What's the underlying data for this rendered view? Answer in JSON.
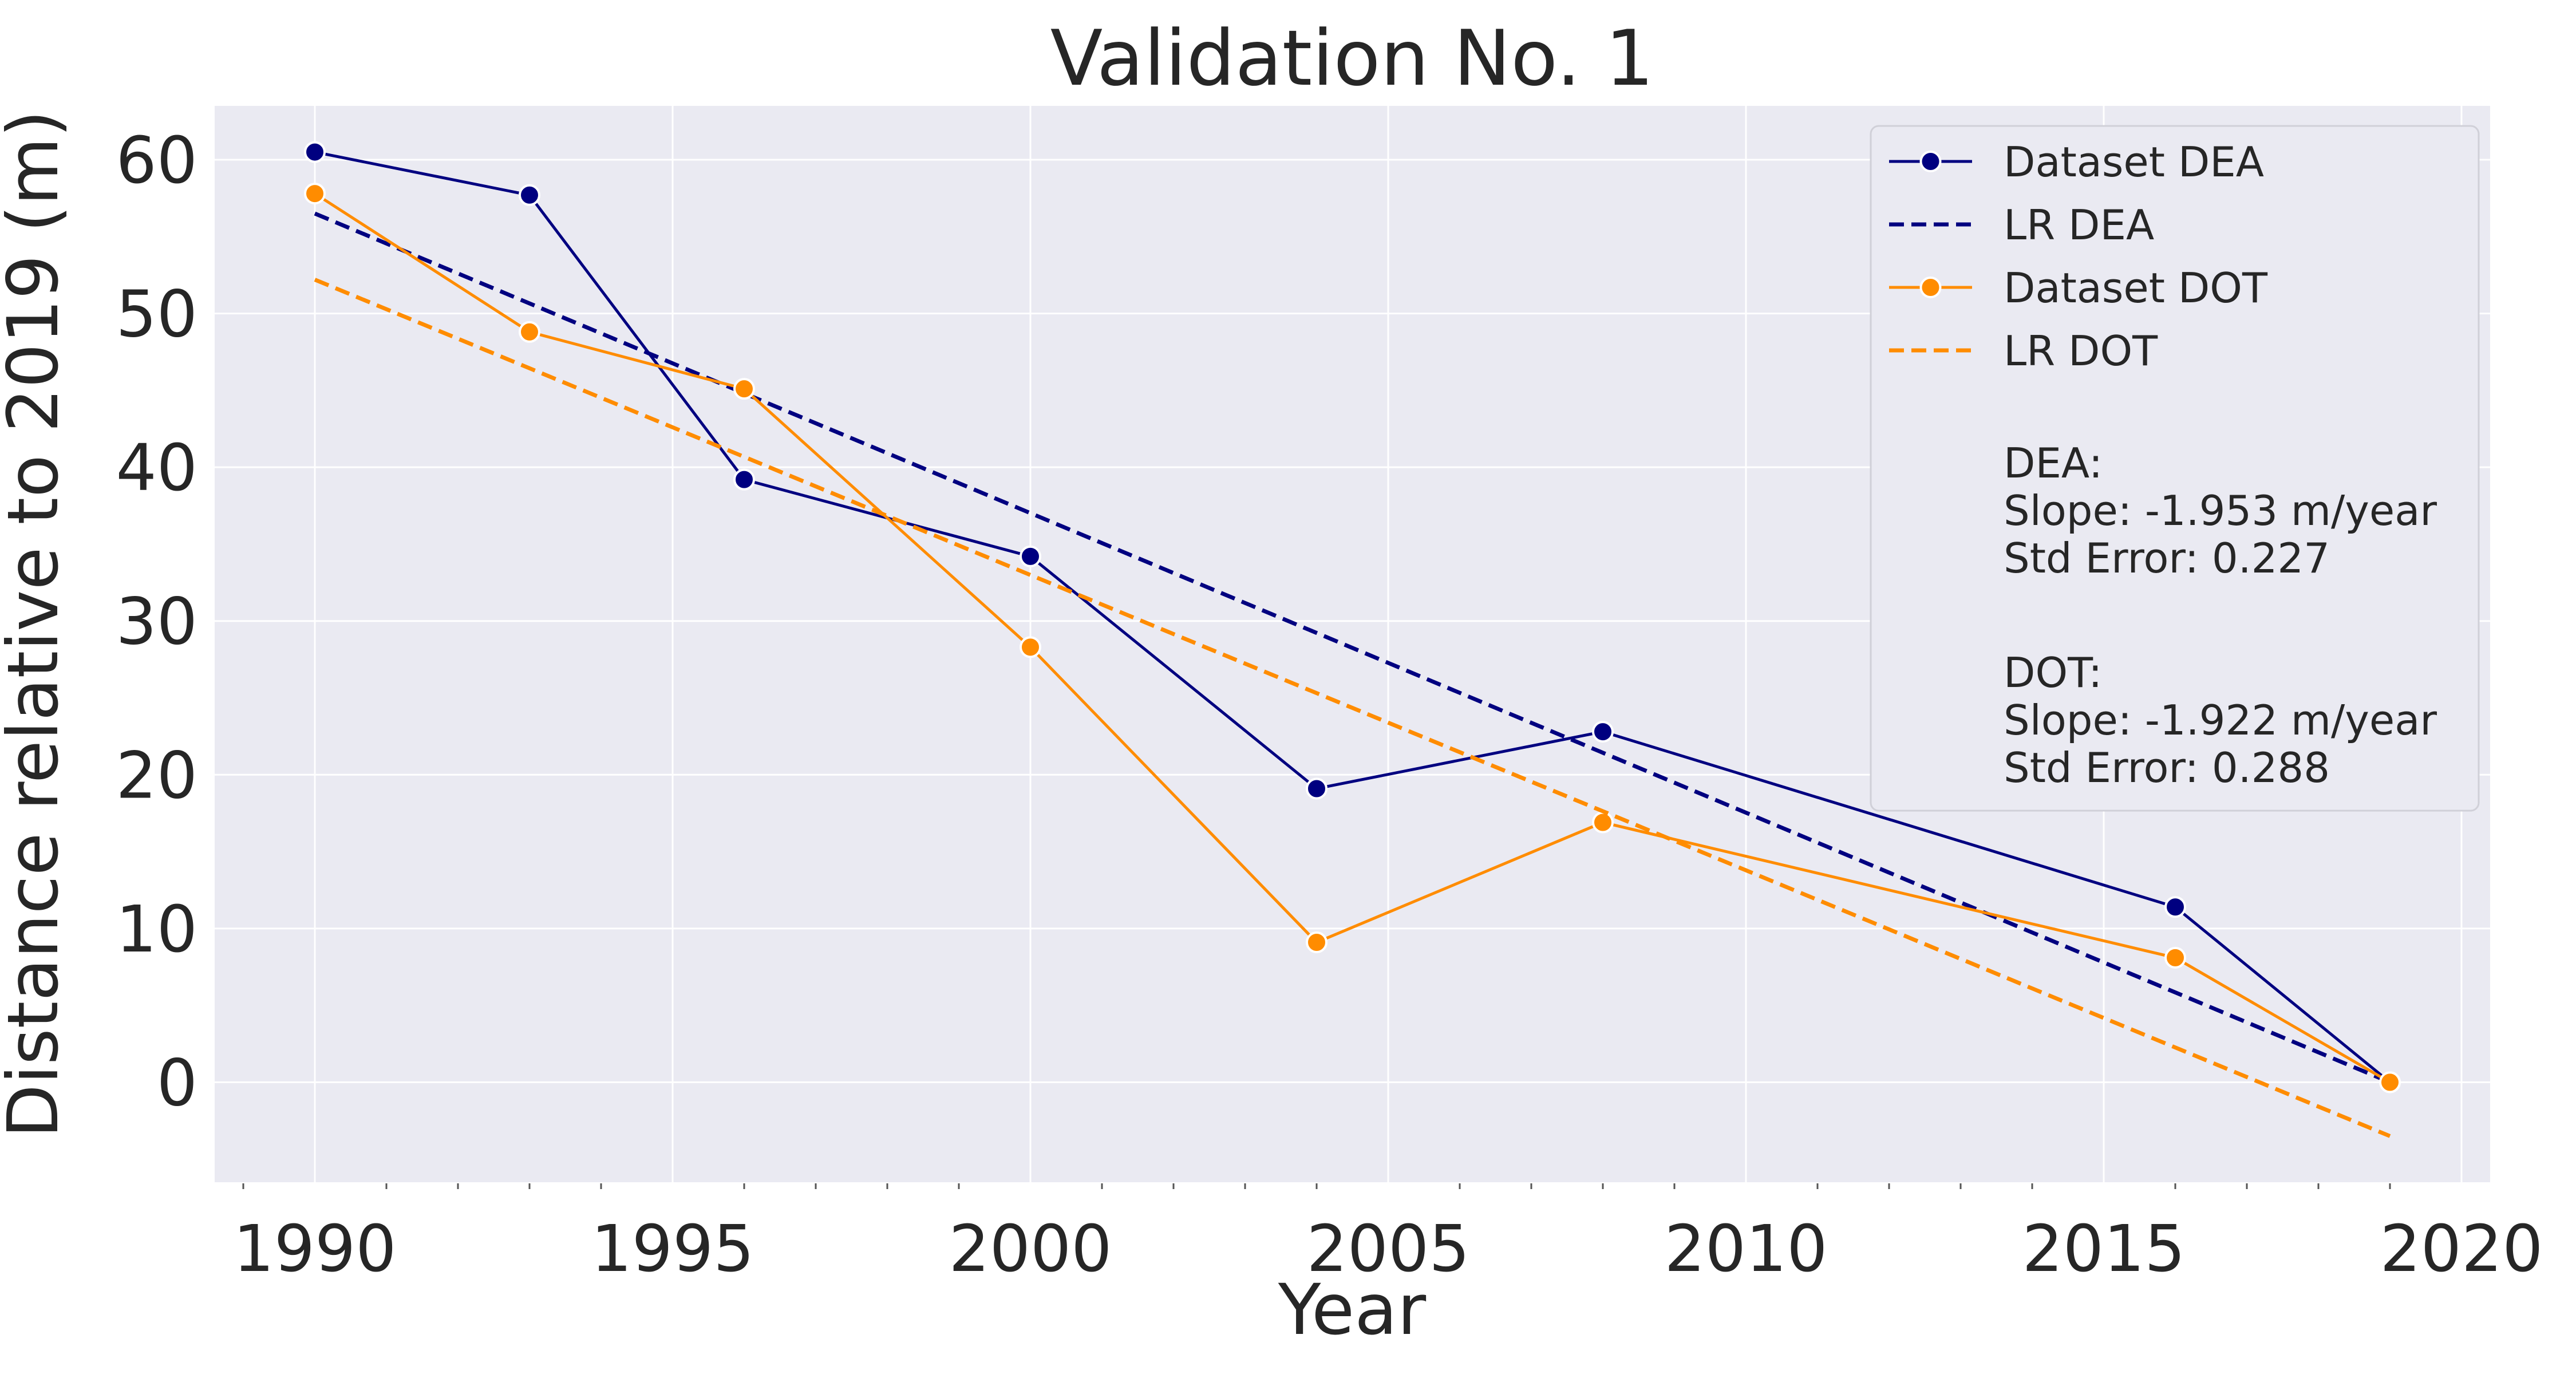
{
  "chart_data": {
    "type": "line",
    "title": "Validation No. 1",
    "xlabel": "Year",
    "ylabel": "Distance relative to 2019 (m)",
    "xlim": [
      1988.6,
      2020.4
    ],
    "ylim": [
      -6.5,
      63.5
    ],
    "x_ticks": [
      1990,
      1995,
      2000,
      2005,
      2010,
      2015,
      2020
    ],
    "y_ticks": [
      0,
      10,
      20,
      30,
      40,
      50,
      60
    ],
    "grid": true,
    "legend_position": "top-right",
    "series": [
      {
        "name": "Dataset DEA",
        "color": "#000080",
        "style": "solid-with-markers",
        "x": [
          1990,
          1993,
          1996,
          2000,
          2004,
          2008,
          2016,
          2019
        ],
        "y": [
          60.5,
          57.7,
          39.2,
          34.2,
          19.1,
          22.8,
          11.4,
          0
        ]
      },
      {
        "name": "LR DEA",
        "color": "#000080",
        "style": "dashed",
        "x": [
          1990,
          2019
        ],
        "y": [
          56.5,
          0
        ]
      },
      {
        "name": "Dataset DOT",
        "color": "#ff8c00",
        "style": "solid-with-markers",
        "x": [
          1990,
          1993,
          1996,
          2000,
          2004,
          2008,
          2016,
          2019
        ],
        "y": [
          57.8,
          48.8,
          45.1,
          28.3,
          9.1,
          16.9,
          8.1,
          0
        ]
      },
      {
        "name": "LR DOT",
        "color": "#ff8c00",
        "style": "dashed",
        "x": [
          1990,
          2019
        ],
        "y": [
          52.2,
          -3.5
        ]
      }
    ],
    "stats_text": [
      "DEA:",
      "Slope: -1.953 m/year",
      "Std Error: 0.227",
      "DOT:",
      "Slope: -1.922 m/year",
      "Std Error: 0.288"
    ]
  },
  "colors": {
    "plot_background": "#eaeaf2",
    "grid": "#ffffff",
    "text": "#262626"
  }
}
